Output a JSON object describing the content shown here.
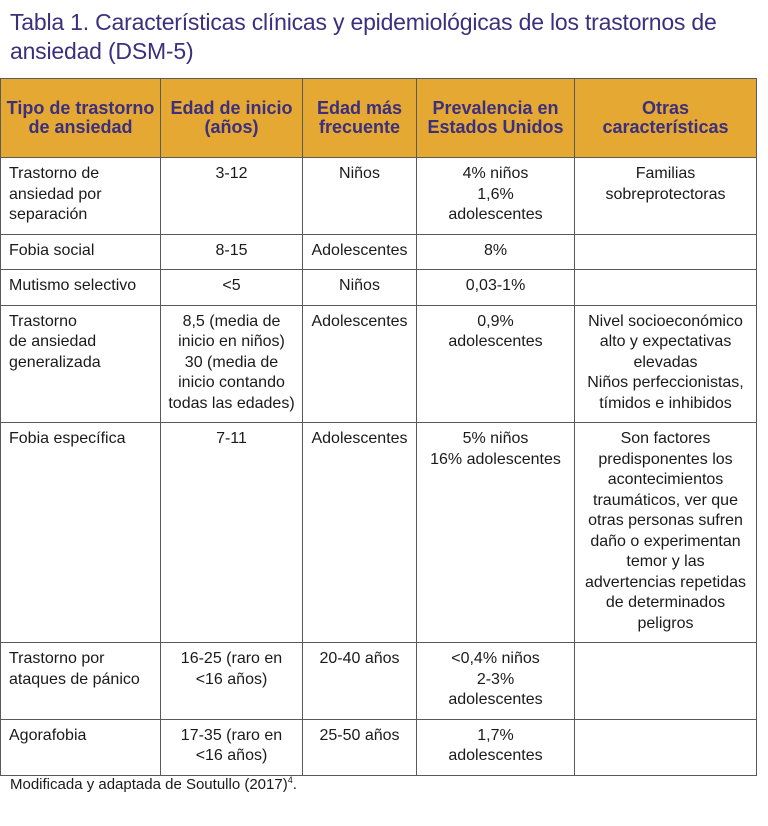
{
  "title": "Tabla 1. Características clínicas y epidemiológicas de los trastornos de ansiedad (DSM-5)",
  "headers": [
    "Tipo de trastorno de ansiedad",
    "Edad de inicio (años)",
    "Edad más frecuente",
    "Prevalencia en Estados Unidos",
    "Otras características"
  ],
  "rows": [
    {
      "tipo": "Trastorno de ansiedad por separación",
      "inicio": "3-12",
      "frecuente": "Niños",
      "prevalencia": "4% niños\n1,6%\nadolescentes",
      "otras": "Familias\nsobreprotectoras"
    },
    {
      "tipo": "Fobia social",
      "inicio": "8-15",
      "frecuente": "Adolescentes",
      "prevalencia": "8%",
      "otras": ""
    },
    {
      "tipo": "Mutismo selectivo",
      "inicio": "<5",
      "frecuente": "Niños",
      "prevalencia": "0,03-1%",
      "otras": ""
    },
    {
      "tipo": "Trastorno\nde ansiedad\ngeneralizada",
      "inicio": "8,5 (media de\ninicio en niños)\n30 (media de\ninicio contando\ntodas las edades)",
      "frecuente": "Adolescentes",
      "prevalencia": "0,9%\nadolescentes",
      "otras": "Nivel socioeconómico\nalto y expectativas\nelevadas\nNiños perfeccionistas,\ntímidos e inhibidos"
    },
    {
      "tipo": "Fobia específica",
      "inicio": "7-11",
      "frecuente": "Adolescentes",
      "prevalencia": "5% niños\n16% adolescentes",
      "otras": "Son factores\npredisponentes los\nacontecimientos\ntraumáticos, ver que\notras personas sufren\ndaño o experimentan\ntemor y las\nadvertencias repetidas\nde determinados\npeligros"
    },
    {
      "tipo": "Trastorno por\nataques de pánico",
      "inicio": "16-25 (raro en\n<16 años)",
      "frecuente": "20-40 años",
      "prevalencia": "<0,4% niños\n2-3%\nadolescentes",
      "otras": ""
    },
    {
      "tipo": "Agorafobia",
      "inicio": "17-35 (raro en\n<16 años)",
      "frecuente": "25-50 años",
      "prevalencia": "1,7%\nadolescentes",
      "otras": ""
    }
  ],
  "footnote": {
    "text": "Modificada y adaptada de Soutullo (2017)",
    "ref": "4",
    "end": "."
  },
  "colors": {
    "title": "#3b2f7e",
    "header_bg": "#e5a832",
    "header_text": "#3b2f7e",
    "border": "#5a5a5a"
  }
}
